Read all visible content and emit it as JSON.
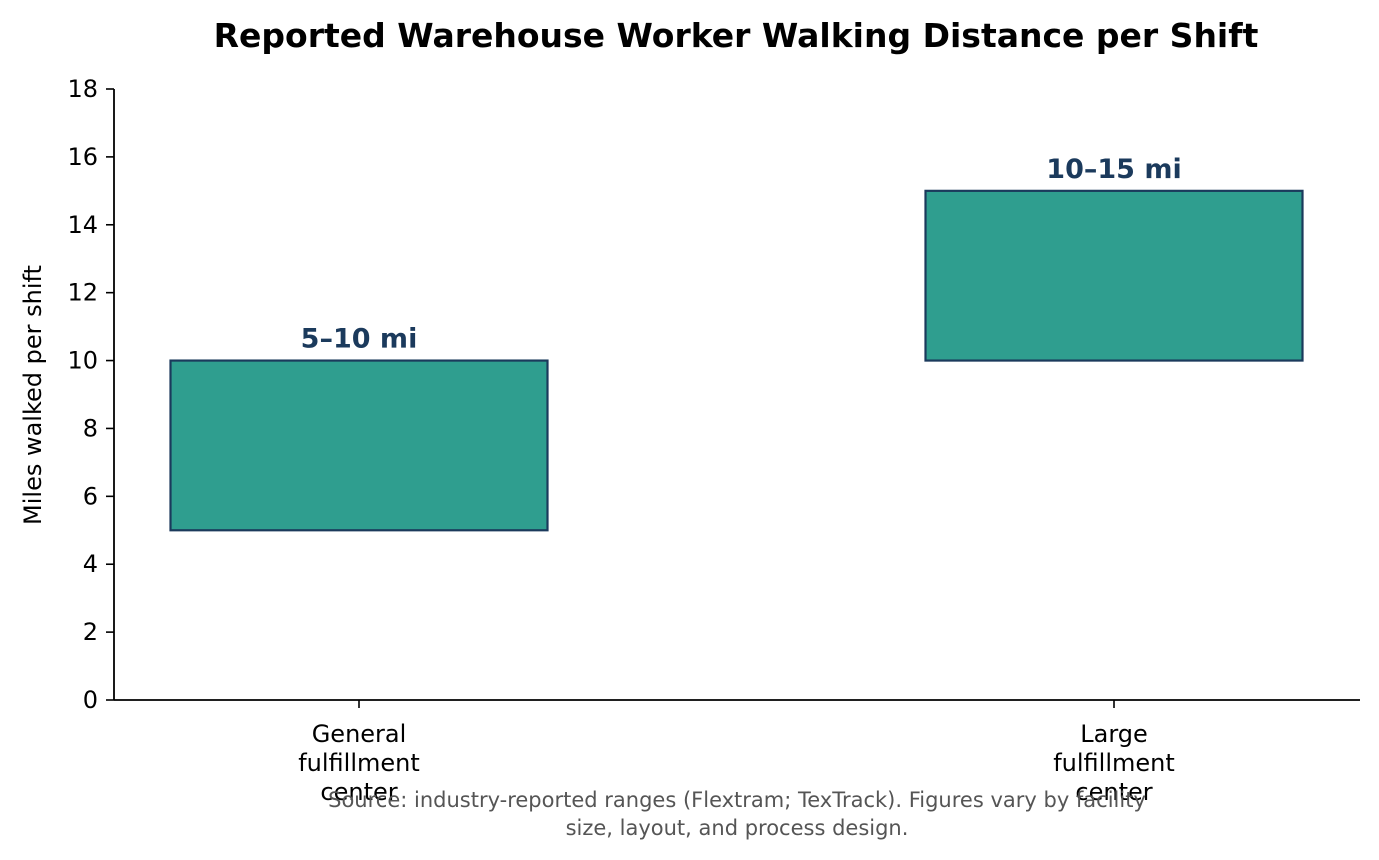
{
  "chart_data": {
    "type": "bar",
    "title": "Reported Warehouse Worker Walking Distance per Shift",
    "ylabel": "Miles walked per shift",
    "xlabel": "",
    "ylim": [
      0,
      18
    ],
    "yticks": [
      0,
      2,
      4,
      6,
      8,
      10,
      12,
      14,
      16,
      18
    ],
    "categories": [
      [
        "General",
        "fulfillment",
        "center"
      ],
      [
        "Large",
        "fulfillment",
        "center"
      ]
    ],
    "ranges": [
      {
        "low": 5,
        "high": 10,
        "label": "5–10 mi"
      },
      {
        "low": 10,
        "high": 15,
        "label": "10–15 mi"
      }
    ],
    "grid": false,
    "legend": "none",
    "colors": {
      "bar_fill": "#2f9e8f",
      "bar_edge": "#1b3a5c",
      "label": "#1b3a5c"
    },
    "note": [
      "Source: industry-reported ranges (Flextram; TexTrack). Figures vary by facility",
      "size, layout, and process design."
    ]
  }
}
